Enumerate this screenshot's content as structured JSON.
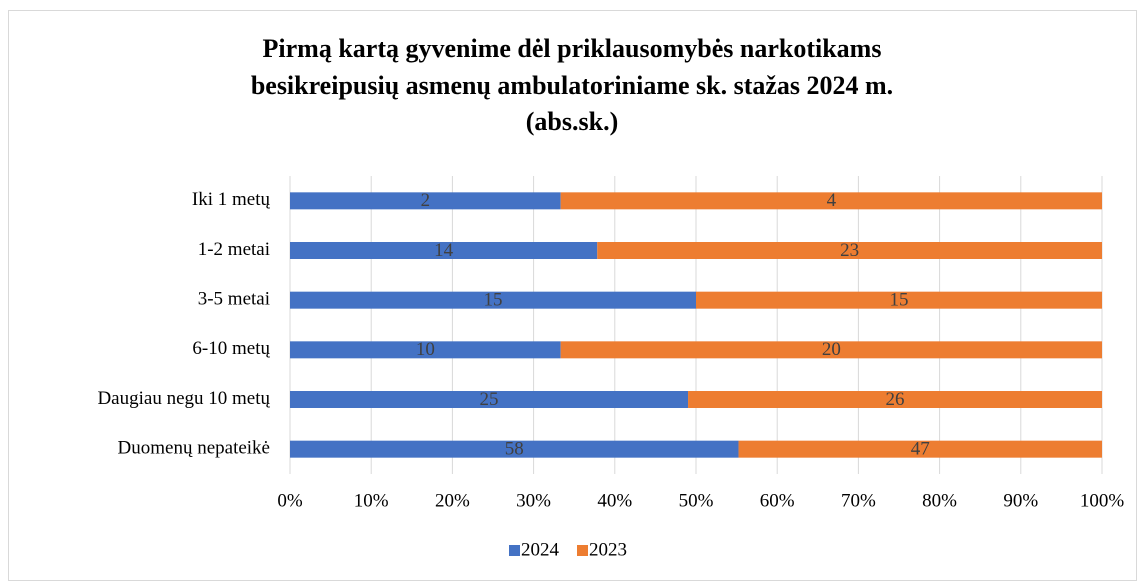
{
  "chart_data": {
    "type": "bar",
    "orientation": "horizontal",
    "stacking": "percent",
    "title": [
      "Pirmą kartą gyvenime dėl priklausomybės narkotikams",
      "besikreipusių asmenų ambulatoriniame sk. stažas 2024 m.",
      "(abs.sk.)"
    ],
    "categories": [
      "Iki 1 metų",
      "1-2 metai",
      "3-5 metai",
      "6-10 metų",
      "Daugiau negu 10 metų",
      "Duomenų nepateikė"
    ],
    "series": [
      {
        "name": "2024",
        "color": "#4472c4",
        "values": [
          2,
          14,
          15,
          10,
          25,
          58
        ]
      },
      {
        "name": "2023",
        "color": "#ed7d31",
        "values": [
          4,
          23,
          15,
          20,
          26,
          47
        ]
      }
    ],
    "xlim": [
      0,
      100
    ],
    "xticks": [
      {
        "value": 0,
        "label": "0%"
      },
      {
        "value": 10,
        "label": "10%"
      },
      {
        "value": 20,
        "label": "20%"
      },
      {
        "value": 30,
        "label": "30%"
      },
      {
        "value": 40,
        "label": "40%"
      },
      {
        "value": 50,
        "label": "50%"
      },
      {
        "value": 60,
        "label": "60%"
      },
      {
        "value": 70,
        "label": "70%"
      },
      {
        "value": 80,
        "label": "80%"
      },
      {
        "value": 90,
        "label": "90%"
      },
      {
        "value": 100,
        "label": "100%"
      }
    ],
    "grid": true,
    "legend": "bottom"
  }
}
